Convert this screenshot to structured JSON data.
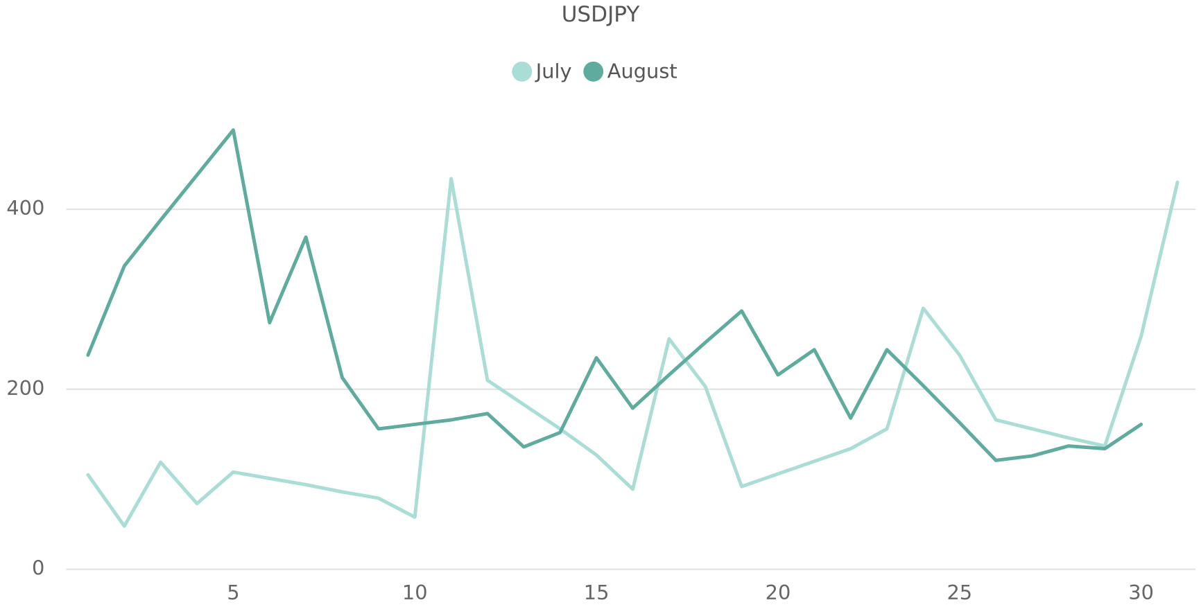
{
  "chart_data": {
    "type": "line",
    "title": "USDJPY",
    "x": [
      1,
      2,
      3,
      4,
      5,
      6,
      7,
      8,
      9,
      10,
      11,
      12,
      13,
      14,
      15,
      16,
      17,
      18,
      19,
      20,
      21,
      22,
      23,
      24,
      25,
      26,
      27,
      28,
      29,
      30,
      31
    ],
    "series": [
      {
        "name": "July",
        "color": "#aaddd6",
        "values": [
          105,
          48,
          119,
          73,
          108,
          101,
          94,
          86,
          79,
          58,
          434,
          210,
          183,
          156,
          127,
          89,
          256,
          203,
          92,
          106,
          120,
          134,
          156,
          290,
          238,
          166,
          156,
          146,
          137,
          259,
          430
        ]
      },
      {
        "name": "August",
        "color": "#5fab9e",
        "values": [
          238,
          337,
          388,
          438,
          488,
          274,
          369,
          213,
          156,
          161,
          166,
          173,
          136,
          152,
          235,
          179,
          216,
          252,
          287,
          216,
          244,
          168,
          244,
          204,
          163,
          121,
          126,
          137,
          134,
          161,
          null
        ]
      }
    ],
    "xlim": [
      0.4,
      31.5
    ],
    "xticks": [
      5,
      10,
      15,
      20,
      25,
      30
    ],
    "ylim": [
      0,
      500
    ],
    "yticks": [
      0,
      200,
      400
    ],
    "grid": true
  }
}
